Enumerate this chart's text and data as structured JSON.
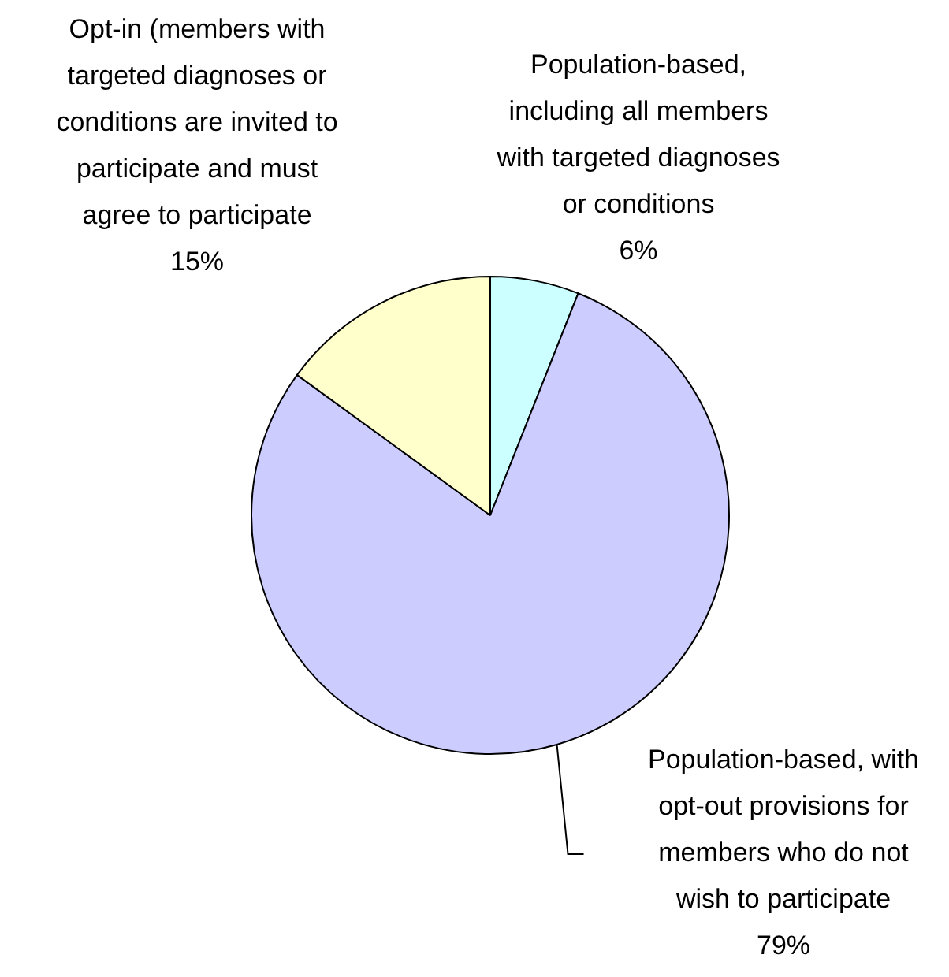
{
  "chart_data": {
    "type": "pie",
    "categories": [
      "Population-based,\nincluding all members\nwith targeted diagnoses\nor conditions",
      "Population-based, with\nopt-out provisions for\nmembers who do not\nwish to participate",
      "Opt-in (members with\ntargeted diagnoses or\nconditions are invited to\nparticipate and must\nagree to participate"
    ],
    "values": [
      6,
      79,
      15
    ],
    "colors": [
      "#ccffff",
      "#ccccff",
      "#ffffcc"
    ],
    "value_labels": [
      "6%",
      "79%",
      "15%"
    ],
    "legend": false
  }
}
